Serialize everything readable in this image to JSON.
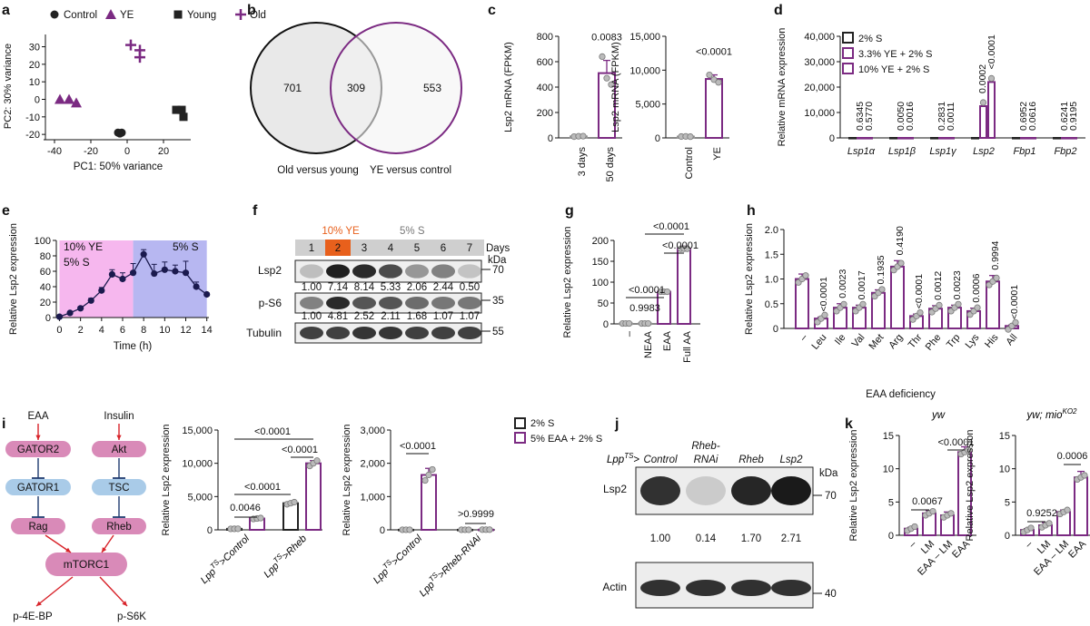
{
  "panel_letters": [
    "a",
    "b",
    "c",
    "d",
    "e",
    "f",
    "g",
    "h",
    "i",
    "j",
    "k"
  ],
  "colors": {
    "purple": "#7b2a82",
    "grey": "#9a9a9a",
    "dark": "#2a2a2a",
    "pink": "#f6b7ee",
    "blue": "#b7b7f1",
    "pathPink": "#d98ab8",
    "pathBlue": "#a9cbe8",
    "red": "#d8232a",
    "orange": "#e8601c"
  },
  "chart_data": [
    {
      "id": "a",
      "type": "scatter",
      "xlabel": "PC1: 50% variance",
      "ylabel": "PC2: 30% variance",
      "xlim": [
        -45,
        35
      ],
      "ylim": [
        -22,
        37
      ],
      "xticks": [
        "-40",
        "-20",
        "0",
        "20"
      ],
      "yticks": [
        "-20",
        "-10",
        "0",
        "10",
        "20",
        "30"
      ],
      "legend": [
        "Control",
        "YE",
        "Young",
        "Old"
      ],
      "series": [
        {
          "name": "Control",
          "marker": "circle",
          "x": [
            -5,
            -3,
            -4
          ],
          "y": [
            -19,
            -19,
            -19.5
          ]
        },
        {
          "name": "YE",
          "marker": "triangle",
          "x": [
            -37,
            -32,
            -28
          ],
          "y": [
            0,
            0,
            -2
          ]
        },
        {
          "name": "Young",
          "marker": "square",
          "x": [
            27,
            30,
            31
          ],
          "y": [
            -6,
            -6,
            -10
          ]
        },
        {
          "name": "Old",
          "marker": "plus",
          "x": [
            2,
            7,
            7
          ],
          "y": [
            31,
            28,
            24
          ]
        }
      ]
    },
    {
      "id": "b",
      "type": "venn",
      "left": "701",
      "center": "309",
      "right": "553",
      "labels": [
        "Old versus young",
        "YE versus control"
      ]
    },
    {
      "id": "c1",
      "type": "bar",
      "ylabel": "Lsp2 mRNA (FPKM)",
      "ylim": [
        0,
        800
      ],
      "yticks": [
        "0",
        "200",
        "400",
        "600",
        "800"
      ],
      "categories": [
        "3 days",
        "50 days"
      ],
      "values": [
        12,
        510
      ],
      "err": [
        4,
        100
      ],
      "pts": [
        [
          10,
          13,
          14
        ],
        [
          640,
          470,
          420
        ]
      ],
      "pvalue": "0.0083"
    },
    {
      "id": "c2",
      "type": "bar",
      "ylabel": "Lsp2 mRNA (FPKM)",
      "ylim": [
        0,
        15000
      ],
      "yticks": [
        "0",
        "5,000",
        "10,000",
        "15,000"
      ],
      "categories": [
        "Control",
        "YE"
      ],
      "values": [
        200,
        8700
      ],
      "err": [
        50,
        600
      ],
      "pts": [
        [
          200,
          220,
          180
        ],
        [
          9300,
          8600,
          8200
        ]
      ],
      "pvalue": "<0.0001"
    },
    {
      "id": "d",
      "type": "bar",
      "ylabel": "Relative mRNA expression",
      "ylim": [
        0,
        40000
      ],
      "yticks": [
        "0",
        "10,000",
        "20,000",
        "30,000",
        "40,000"
      ],
      "categories": [
        "Lsp1α",
        "Lsp1β",
        "Lsp1γ",
        "Lsp2",
        "Fbp1",
        "Fbp2"
      ],
      "series": [
        {
          "name": "2% S"
        },
        {
          "name": "3.3% YE + 2% S"
        },
        {
          "name": "10% YE + 2% S"
        }
      ],
      "values": [
        [
          1,
          1,
          1
        ],
        [
          1,
          1,
          1
        ],
        [
          1,
          1,
          1
        ],
        [
          1,
          12500,
          22000
        ],
        [
          1,
          1,
          1
        ],
        [
          1,
          1,
          1
        ]
      ],
      "pvalues": [
        [
          "0.6345",
          "0.5770"
        ],
        [
          "0.0050",
          "0.0016"
        ],
        [
          "0.2831",
          "0.0011"
        ],
        [
          "0.0002",
          "<0.0001"
        ],
        [
          "0.6952",
          "0.0616"
        ],
        [
          "0.6241",
          "0.9195"
        ]
      ]
    },
    {
      "id": "e",
      "type": "line",
      "xlabel": "Time (h)",
      "ylabel": "Relative Lsp2 expression",
      "xlim": [
        -0.3,
        14.2
      ],
      "ylim": [
        0,
        100
      ],
      "xticks": [
        "0",
        "2",
        "4",
        "6",
        "8",
        "10",
        "12",
        "14"
      ],
      "yticks": [
        "0",
        "20",
        "40",
        "60",
        "80",
        "100"
      ],
      "region1": "10% YE\n5% S",
      "region2": "5% S",
      "x": [
        0,
        1,
        2,
        3,
        4,
        5,
        6,
        7,
        8,
        9,
        10,
        11,
        12,
        13,
        14
      ],
      "y": [
        1,
        6,
        12,
        22,
        35,
        56,
        50,
        58,
        82,
        57,
        62,
        60,
        58,
        40,
        30
      ],
      "err": [
        0,
        1,
        2,
        3,
        4,
        6,
        8,
        12,
        6,
        12,
        10,
        8,
        15,
        6,
        2
      ]
    },
    {
      "id": "f",
      "type": "blot",
      "days": [
        "1",
        "2",
        "3",
        "4",
        "5",
        "6",
        "7"
      ],
      "daysLabel": "Days",
      "ye": "10% YE",
      "s": "5% S",
      "rows": [
        "Lsp2",
        "p-S6",
        "Tubulin"
      ],
      "kda": "kDa",
      "mw": [
        "70",
        "35",
        "55"
      ],
      "quant1": [
        "1.00",
        "7.14",
        "8.14",
        "5.33",
        "2.06",
        "2.44",
        "0.50"
      ],
      "quant2": [
        "1.00",
        "4.81",
        "2.52",
        "2.11",
        "1.68",
        "1.07",
        "1.07"
      ]
    },
    {
      "id": "g",
      "type": "bar",
      "ylabel": "Relative Lsp2 expression",
      "ylim": [
        0,
        200
      ],
      "yticks": [
        "0",
        "50",
        "100",
        "150",
        "200"
      ],
      "categories": [
        "–",
        "NEAA",
        "EAA",
        "Full AA"
      ],
      "values": [
        1,
        1,
        77,
        180
      ],
      "err": [
        0,
        0.5,
        3,
        6
      ],
      "pvalues": [
        "0.9983",
        "<0.0001",
        "<0.0001",
        "<0.0001"
      ]
    },
    {
      "id": "h",
      "type": "bar",
      "xlabel": "EAA deficiency",
      "ylabel": "Relative Lsp2 expression",
      "ylim": [
        0,
        2
      ],
      "yticks": [
        "0",
        "0.5",
        "1.0",
        "1.5",
        "2.0"
      ],
      "categories": [
        "–",
        "Leu",
        "Ile",
        "Val",
        "Met",
        "Arg",
        "Thr",
        "Phe",
        "Trp",
        "Lys",
        "His",
        "All"
      ],
      "values": [
        1.0,
        0.2,
        0.42,
        0.42,
        0.72,
        1.25,
        0.25,
        0.4,
        0.42,
        0.35,
        0.95,
        0.05
      ],
      "err": [
        0.1,
        0.03,
        0.08,
        0.05,
        0.06,
        0.12,
        0.04,
        0.06,
        0.05,
        0.06,
        0.12,
        0.02
      ],
      "pvalues": [
        "",
        "<0.0001",
        "0.0023",
        "0.0017",
        "0.1935",
        "0.4190",
        "<0.0001",
        "0.0012",
        "0.0023",
        "0.0006",
        "0.9994",
        "<0.0001"
      ]
    },
    {
      "id": "i_path",
      "type": "diagram",
      "nodes": [
        "EAA",
        "Insulin",
        "GATOR2",
        "Akt",
        "GATOR1",
        "TSC",
        "Rag",
        "Rheb",
        "mTORC1",
        "p-4E-BP",
        "p-S6K"
      ]
    },
    {
      "id": "i1",
      "type": "bar",
      "ylabel": "Relative Lsp2 expression",
      "ylim": [
        0,
        15000
      ],
      "yticks": [
        "0",
        "5,000",
        "10,000",
        "15,000"
      ],
      "categories": [
        "Lpp^TS>Control",
        "Lpp^TS>Rheb"
      ],
      "values": [
        [
          150,
          1700
        ],
        [
          4000,
          10000
        ]
      ],
      "pvalues": [
        "0.0046",
        "<0.0001",
        "<0.0001",
        "<0.0001"
      ]
    },
    {
      "id": "i2",
      "type": "bar",
      "ylabel": "Relative Lsp2 expression",
      "ylim": [
        0,
        3000
      ],
      "yticks": [
        "0",
        "1,000",
        "2,000",
        "3,000"
      ],
      "categories": [
        "Lpp^TS>Control",
        "Lpp^TS>Rheb-RNAi"
      ],
      "values": [
        [
          2,
          1650
        ],
        [
          2,
          5
        ]
      ],
      "series": [
        {
          "name": "2% S"
        },
        {
          "name": "5% EAA + 2% S"
        }
      ],
      "pvalues": [
        "<0.0001",
        ">0.9999"
      ]
    },
    {
      "id": "j",
      "type": "blot",
      "lanes": [
        "Control",
        "Rheb-RNAi",
        "Rheb",
        "Lsp2"
      ],
      "prefix": "Lpp",
      "prefixSup": "TS",
      "rows": [
        "Lsp2",
        "Actin"
      ],
      "kda": "kDa",
      "mw": [
        "70",
        "40"
      ],
      "quant": [
        "1.00",
        "0.14",
        "1.70",
        "2.71"
      ]
    },
    {
      "id": "k1",
      "type": "bar",
      "title": "yw",
      "ylabel": "Relative Lsp2 expression",
      "ylim": [
        0,
        15
      ],
      "yticks": [
        "0",
        "5",
        "10",
        "15"
      ],
      "categories": [
        "–",
        "LM",
        "EAA – LM",
        "EAA"
      ],
      "values": [
        1,
        3.3,
        3,
        12.5
      ],
      "err": [
        0.2,
        0.4,
        0.5,
        0.8
      ],
      "pvalues": [
        "0.0067",
        "<0.0001"
      ]
    },
    {
      "id": "k2",
      "type": "bar",
      "title": "yw; mio",
      "titleSup": "KO2",
      "ylabel": "Relative Lsp2 expression",
      "ylim": [
        0,
        15
      ],
      "yticks": [
        "0",
        "5",
        "10",
        "15"
      ],
      "categories": [
        "–",
        "LM",
        "EAA – LM",
        "EAA"
      ],
      "values": [
        0.8,
        1.5,
        3.5,
        8.7
      ],
      "err": [
        0.2,
        0.4,
        0.3,
        0.9
      ],
      "pvalues": [
        "0.9252",
        "0.0006"
      ]
    }
  ]
}
